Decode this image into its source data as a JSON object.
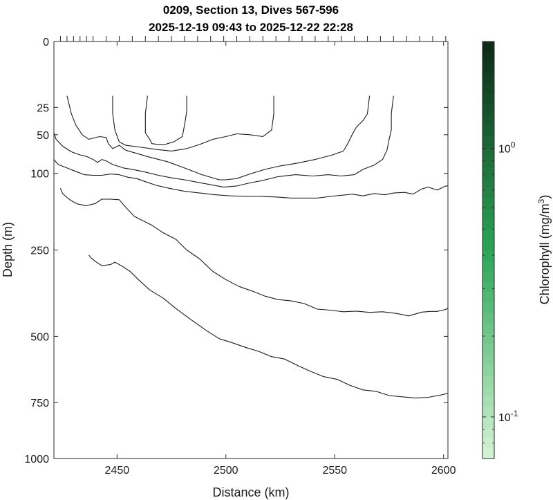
{
  "chart_data": {
    "type": "contour",
    "title": "0209, Section 13, Dives 567-596",
    "subtitle": "2025-12-19 09:43 to 2025-12-22 22:28",
    "xlabel": "Distance (km)",
    "ylabel": "Depth (m)",
    "xlim": [
      2421,
      2602
    ],
    "ylim": [
      0,
      1000
    ],
    "xticks": [
      2450,
      2500,
      2550,
      2600
    ],
    "xtick_labels": [
      "2450",
      "2500",
      "2550",
      "2600"
    ],
    "yticks": [
      0,
      25,
      50,
      100,
      250,
      500,
      750,
      1000
    ],
    "ytick_labels": [
      "0",
      "25",
      "50",
      "100",
      "250",
      "500",
      "750",
      "1000"
    ],
    "y_scale": "square-root",
    "dive_markers_km": [
      2424,
      2427,
      2430,
      2433,
      2436,
      2439,
      2445,
      2451,
      2457,
      2463,
      2469,
      2475,
      2481,
      2487,
      2493,
      2499,
      2505,
      2511,
      2517,
      2523,
      2529,
      2535,
      2541,
      2547,
      2553,
      2559,
      2565,
      2571,
      2577,
      2583,
      2589,
      2595,
      2601
    ],
    "colorbar": {
      "label": "Chlorophyll (mg/m",
      "label_sup": "3",
      "label_end": ")",
      "scale": "log",
      "range": [
        0.07,
        2.5
      ],
      "ticks": [
        {
          "value": 1.0,
          "base": "10",
          "exp": "0"
        },
        {
          "value": 0.1,
          "base": "10",
          "exp": "-1"
        }
      ],
      "color_low": "#d6f5d6",
      "color_mid": "#2aa556",
      "color_high": "#0d2a17",
      "levels": 40
    },
    "contours": [
      {
        "points": [
          [
            2464,
            17
          ],
          [
            2463,
            30
          ],
          [
            2463,
            48
          ],
          [
            2465,
            55
          ],
          [
            2466,
            60
          ],
          [
            2469,
            61
          ],
          [
            2472,
            61
          ],
          [
            2476,
            58
          ],
          [
            2480,
            52
          ],
          [
            2481,
            40
          ],
          [
            2482,
            28
          ],
          [
            2482,
            17
          ]
        ]
      },
      {
        "points": [
          [
            2448,
            17
          ],
          [
            2448,
            30
          ],
          [
            2449,
            45
          ],
          [
            2451,
            58
          ],
          [
            2454,
            62
          ],
          [
            2460,
            64
          ],
          [
            2468,
            67
          ],
          [
            2475,
            69
          ],
          [
            2482,
            66
          ],
          [
            2488,
            61
          ],
          [
            2494,
            55
          ],
          [
            2500,
            52
          ],
          [
            2505,
            49
          ],
          [
            2511,
            50
          ],
          [
            2517,
            52
          ],
          [
            2521,
            45
          ],
          [
            2522,
            30
          ],
          [
            2522,
            17
          ]
        ]
      },
      {
        "points": [
          [
            2427,
            17
          ],
          [
            2429,
            30
          ],
          [
            2431,
            40
          ],
          [
            2434,
            50
          ],
          [
            2437,
            55
          ],
          [
            2442,
            52
          ],
          [
            2445,
            53
          ],
          [
            2446,
            60
          ],
          [
            2448,
            66
          ],
          [
            2451,
            62
          ],
          [
            2454,
            68
          ],
          [
            2459,
            72
          ],
          [
            2465,
            77
          ],
          [
            2473,
            83
          ],
          [
            2481,
            92
          ],
          [
            2489,
            102
          ],
          [
            2497,
            110
          ],
          [
            2500,
            110
          ],
          [
            2505,
            108
          ],
          [
            2511,
            101
          ],
          [
            2518,
            94
          ],
          [
            2525,
            89
          ],
          [
            2533,
            85
          ],
          [
            2541,
            80
          ],
          [
            2549,
            74
          ],
          [
            2554,
            69
          ],
          [
            2556,
            60
          ],
          [
            2558,
            50
          ],
          [
            2560,
            42
          ],
          [
            2563,
            36
          ],
          [
            2565,
            30
          ],
          [
            2566,
            17
          ]
        ]
      },
      {
        "points": [
          [
            2421,
            48
          ],
          [
            2422,
            55
          ],
          [
            2425,
            63
          ],
          [
            2429,
            70
          ],
          [
            2433,
            74
          ],
          [
            2436,
            76
          ],
          [
            2439,
            80
          ],
          [
            2441,
            84
          ],
          [
            2443,
            80
          ],
          [
            2445,
            82
          ],
          [
            2448,
            87
          ],
          [
            2453,
            92
          ],
          [
            2457,
            94
          ],
          [
            2463,
            98
          ],
          [
            2469,
            103
          ],
          [
            2475,
            107
          ],
          [
            2481,
            110
          ],
          [
            2487,
            114
          ],
          [
            2493,
            118
          ],
          [
            2499,
            122
          ],
          [
            2505,
            120
          ],
          [
            2511,
            115
          ],
          [
            2517,
            111
          ],
          [
            2524,
            105
          ],
          [
            2532,
            102
          ],
          [
            2540,
            104
          ],
          [
            2547,
            102
          ],
          [
            2553,
            104
          ],
          [
            2559,
            102
          ],
          [
            2563,
            94
          ],
          [
            2568,
            88
          ],
          [
            2572,
            80
          ],
          [
            2574,
            68
          ],
          [
            2575,
            55
          ],
          [
            2576,
            45
          ],
          [
            2576,
            30
          ],
          [
            2577,
            17
          ]
        ]
      },
      {
        "points": [
          [
            2421,
            80
          ],
          [
            2423,
            87
          ],
          [
            2427,
            92
          ],
          [
            2431,
            97
          ],
          [
            2435,
            102
          ],
          [
            2439,
            103
          ],
          [
            2443,
            103
          ],
          [
            2447,
            101
          ],
          [
            2451,
            102
          ],
          [
            2455,
            106
          ],
          [
            2459,
            108
          ],
          [
            2463,
            113
          ],
          [
            2468,
            119
          ],
          [
            2474,
            124
          ],
          [
            2481,
            129
          ],
          [
            2488,
            132
          ],
          [
            2495,
            135
          ],
          [
            2502,
            137
          ],
          [
            2509,
            138
          ],
          [
            2516,
            138
          ],
          [
            2523,
            139
          ],
          [
            2530,
            141
          ],
          [
            2536,
            141
          ],
          [
            2542,
            141
          ],
          [
            2548,
            138
          ],
          [
            2553,
            136
          ],
          [
            2558,
            134
          ],
          [
            2563,
            137
          ],
          [
            2568,
            133
          ],
          [
            2573,
            135
          ],
          [
            2577,
            132
          ],
          [
            2582,
            131
          ],
          [
            2586,
            134
          ],
          [
            2590,
            125
          ],
          [
            2593,
            122
          ],
          [
            2597,
            127
          ],
          [
            2601,
            120
          ],
          [
            2602,
            120
          ]
        ]
      },
      {
        "points": [
          [
            2424,
            124
          ],
          [
            2425,
            133
          ],
          [
            2427,
            140
          ],
          [
            2429,
            146
          ],
          [
            2432,
            152
          ],
          [
            2436,
            155
          ],
          [
            2440,
            151
          ],
          [
            2443,
            143
          ],
          [
            2447,
            143
          ],
          [
            2451,
            144
          ],
          [
            2454,
            158
          ],
          [
            2458,
            176
          ],
          [
            2462,
            185
          ],
          [
            2466,
            194
          ],
          [
            2471,
            210
          ],
          [
            2477,
            225
          ],
          [
            2482,
            250
          ],
          [
            2488,
            272
          ],
          [
            2494,
            304
          ],
          [
            2500,
            326
          ],
          [
            2506,
            345
          ],
          [
            2512,
            358
          ],
          [
            2518,
            373
          ],
          [
            2524,
            383
          ],
          [
            2530,
            387
          ],
          [
            2536,
            395
          ],
          [
            2542,
            412
          ],
          [
            2548,
            415
          ],
          [
            2554,
            420
          ],
          [
            2560,
            418
          ],
          [
            2566,
            422
          ],
          [
            2572,
            420
          ],
          [
            2578,
            425
          ],
          [
            2584,
            433
          ],
          [
            2590,
            421
          ],
          [
            2594,
            419
          ],
          [
            2597,
            419
          ],
          [
            2601,
            413
          ],
          [
            2602,
            408
          ]
        ]
      },
      {
        "points": [
          [
            2437,
            262
          ],
          [
            2438,
            269
          ],
          [
            2440,
            278
          ],
          [
            2443,
            289
          ],
          [
            2447,
            286
          ],
          [
            2449,
            280
          ],
          [
            2452,
            289
          ],
          [
            2456,
            304
          ],
          [
            2460,
            327
          ],
          [
            2465,
            355
          ],
          [
            2471,
            378
          ],
          [
            2477,
            410
          ],
          [
            2484,
            445
          ],
          [
            2491,
            480
          ],
          [
            2497,
            508
          ],
          [
            2503,
            522
          ],
          [
            2509,
            538
          ],
          [
            2515,
            552
          ],
          [
            2521,
            571
          ],
          [
            2527,
            580
          ],
          [
            2533,
            604
          ],
          [
            2539,
            626
          ],
          [
            2545,
            646
          ],
          [
            2551,
            656
          ],
          [
            2557,
            680
          ],
          [
            2563,
            698
          ],
          [
            2569,
            704
          ],
          [
            2575,
            721
          ],
          [
            2581,
            726
          ],
          [
            2587,
            731
          ],
          [
            2593,
            728
          ],
          [
            2599,
            718
          ],
          [
            2602,
            712
          ]
        ]
      }
    ]
  }
}
